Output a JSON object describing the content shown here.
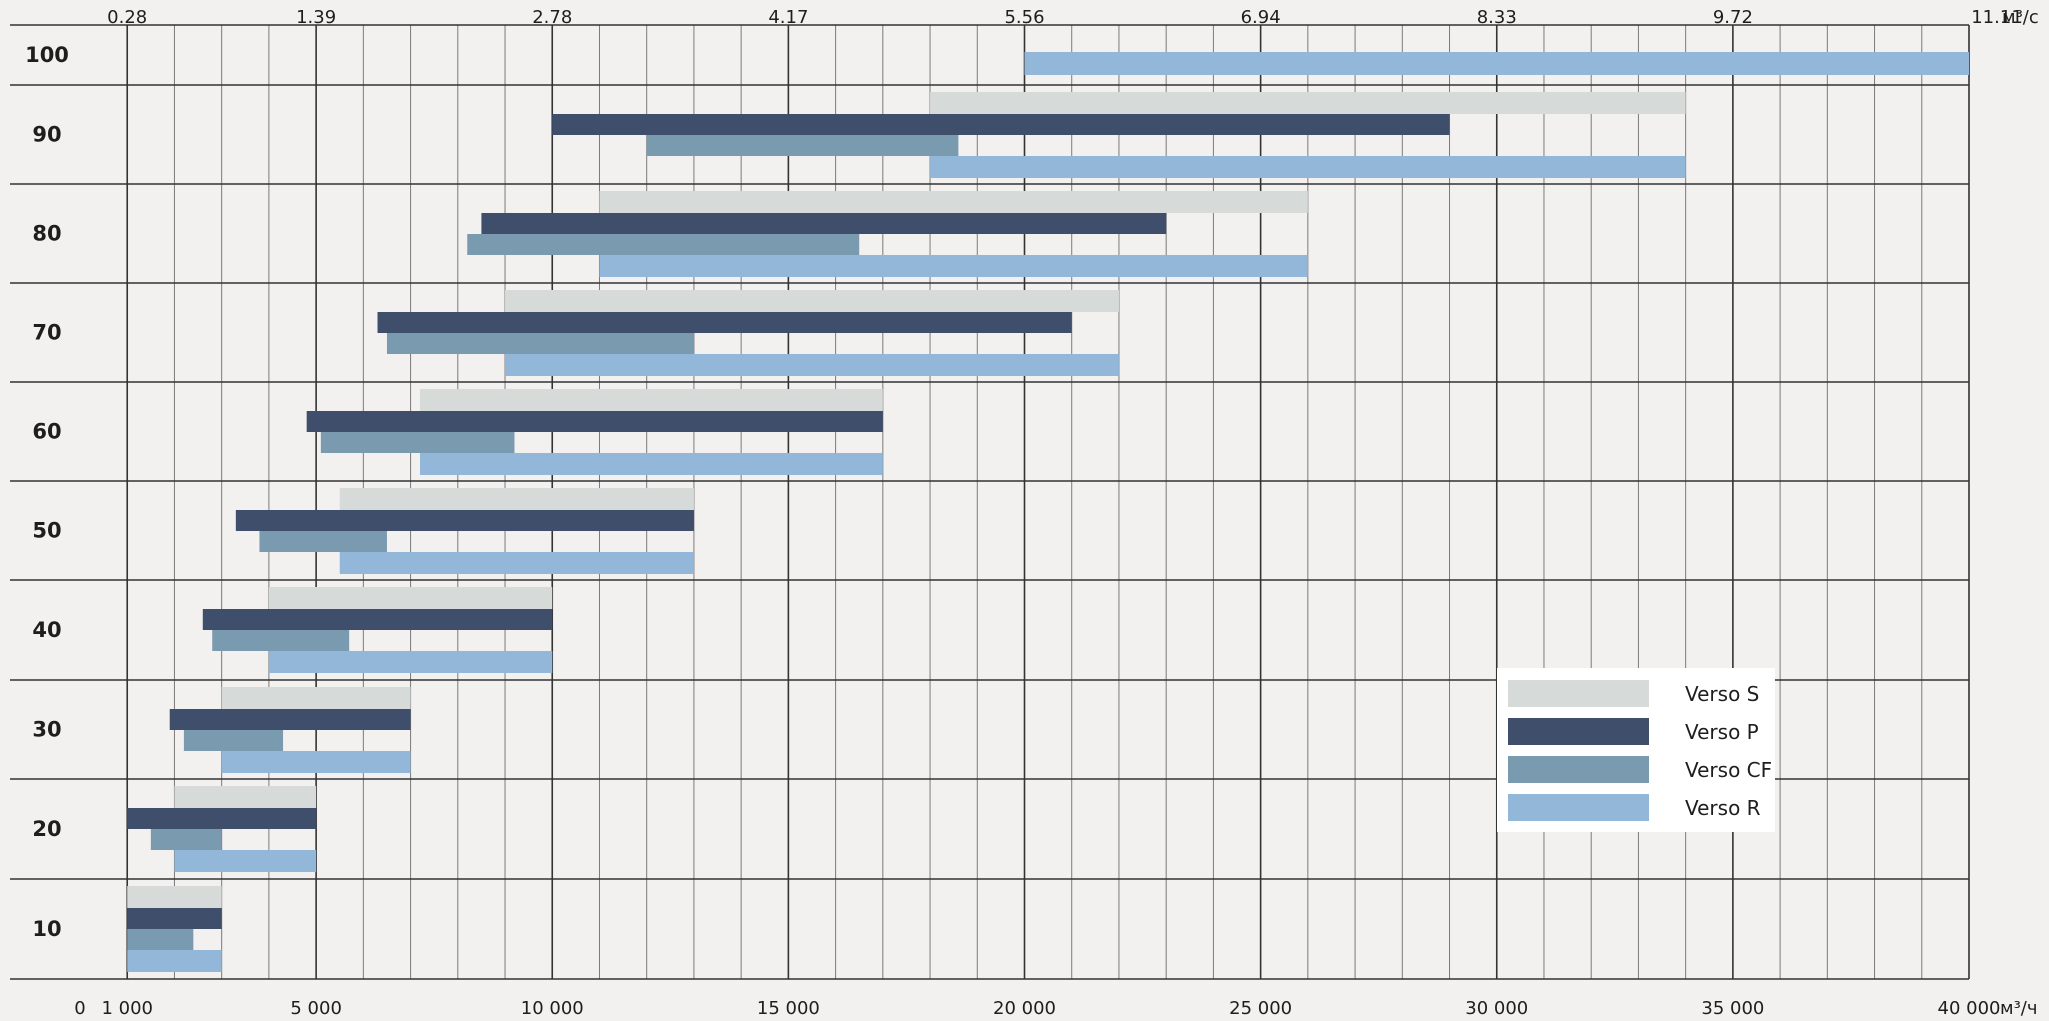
{
  "chart_data": {
    "type": "bar",
    "subtype": "floating-range-horizontal",
    "x_unit_bottom": "м³/ч",
    "x_unit_top": "м³/с",
    "xlim": [
      0,
      40000
    ],
    "grid": true,
    "legend_position": "bottom-right",
    "bottom_ticks": [
      {
        "value": 0,
        "label": "0"
      },
      {
        "value": 1000,
        "label": "1 000"
      },
      {
        "value": 5000,
        "label": "5 000"
      },
      {
        "value": 10000,
        "label": "10 000"
      },
      {
        "value": 15000,
        "label": "15 000"
      },
      {
        "value": 20000,
        "label": "20 000"
      },
      {
        "value": 25000,
        "label": "25 000"
      },
      {
        "value": 30000,
        "label": "30 000"
      },
      {
        "value": 35000,
        "label": "35 000"
      },
      {
        "value": 40000,
        "label": "40 000"
      }
    ],
    "top_ticks": [
      {
        "value": 1000,
        "label": "0.28"
      },
      {
        "value": 5000,
        "label": "1.39"
      },
      {
        "value": 10000,
        "label": "2.78"
      },
      {
        "value": 15000,
        "label": "4.17"
      },
      {
        "value": 20000,
        "label": "5.56"
      },
      {
        "value": 25000,
        "label": "6.94"
      },
      {
        "value": 30000,
        "label": "8.33"
      },
      {
        "value": 35000,
        "label": "9.72"
      },
      {
        "value": 40000,
        "label": "11.11"
      }
    ],
    "series": [
      {
        "name": "Verso S",
        "color": "#d6dbda"
      },
      {
        "name": "Verso P",
        "color": "#3e4e6b"
      },
      {
        "name": "Verso CF",
        "color": "#7a9ab0"
      },
      {
        "name": "Verso R",
        "color": "#93b7d8"
      }
    ],
    "categories": [
      "100",
      "90",
      "80",
      "70",
      "60",
      "50",
      "40",
      "30",
      "20",
      "10"
    ],
    "ranges": {
      "100": {
        "Verso R": [
          20000,
          40000
        ]
      },
      "90": {
        "Verso S": [
          18000,
          34000
        ],
        "Verso P": [
          10000,
          29000
        ],
        "Verso CF": [
          12000,
          18600
        ],
        "Verso R": [
          18000,
          34000
        ]
      },
      "80": {
        "Verso S": [
          11000,
          26000
        ],
        "Verso P": [
          8500,
          23000
        ],
        "Verso CF": [
          8200,
          16500
        ],
        "Verso R": [
          11000,
          26000
        ]
      },
      "70": {
        "Verso S": [
          9000,
          22000
        ],
        "Verso P": [
          6300,
          21000
        ],
        "Verso CF": [
          6500,
          13000
        ],
        "Verso R": [
          9000,
          22000
        ]
      },
      "60": {
        "Verso S": [
          7200,
          17000
        ],
        "Verso P": [
          4800,
          17000
        ],
        "Verso CF": [
          5100,
          9200
        ],
        "Verso R": [
          7200,
          17000
        ]
      },
      "50": {
        "Verso S": [
          5500,
          13000
        ],
        "Verso P": [
          3300,
          13000
        ],
        "Verso CF": [
          3800,
          6500
        ],
        "Verso R": [
          5500,
          13000
        ]
      },
      "40": {
        "Verso S": [
          4000,
          10000
        ],
        "Verso P": [
          2600,
          10000
        ],
        "Verso CF": [
          2800,
          5700
        ],
        "Verso R": [
          4000,
          10000
        ]
      },
      "30": {
        "Verso S": [
          3000,
          7000
        ],
        "Verso P": [
          1900,
          7000
        ],
        "Verso CF": [
          2200,
          4300
        ],
        "Verso R": [
          3000,
          7000
        ]
      },
      "20": {
        "Verso S": [
          2000,
          5000
        ],
        "Verso P": [
          1000,
          5000
        ],
        "Verso CF": [
          1500,
          3000
        ],
        "Verso R": [
          2000,
          5000
        ]
      },
      "10": {
        "Verso S": [
          1000,
          3000
        ],
        "Verso P": [
          1000,
          3000
        ],
        "Verso CF": [
          1000,
          2400
        ],
        "Verso R": [
          1000,
          3000
        ]
      }
    }
  }
}
